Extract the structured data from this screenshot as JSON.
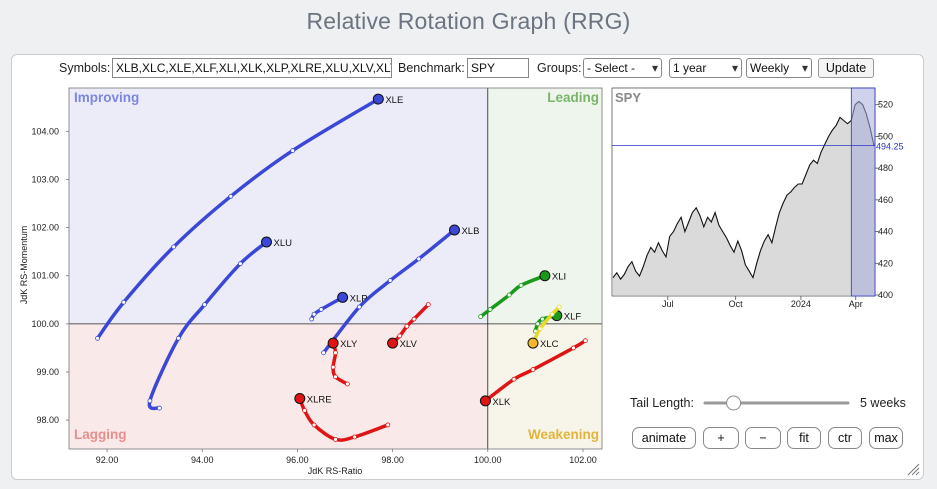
{
  "header": {
    "title": "Relative Rotation Graph (RRG)"
  },
  "controls": {
    "symbols_label": "Symbols:",
    "symbols_value": "XLB,XLC,XLE,XLF,XLI,XLK,XLP,XLRE,XLU,XLV,XLY",
    "benchmark_label": "Benchmark:",
    "benchmark_value": "SPY",
    "groups_label": "Groups:",
    "groups_value": "- Select -",
    "period_value": "1 year",
    "interval_value": "Weekly",
    "update_label": "Update"
  },
  "rrg": {
    "xlabel": "JdK RS-Ratio",
    "ylabel": "JdK RS-Momentum",
    "xlim": [
      91.2,
      102.4
    ],
    "ylim": [
      97.4,
      104.9
    ],
    "center": [
      100,
      100
    ],
    "xticks": [
      "92.00",
      "94.00",
      "96.00",
      "98.00",
      "100.00",
      "102.00"
    ],
    "xtick_values": [
      92,
      94,
      96,
      98,
      100,
      102
    ],
    "yticks": [
      "98.00",
      "99.00",
      "100.00",
      "101.00",
      "102.00",
      "103.00",
      "104.00"
    ],
    "ytick_values": [
      98,
      99,
      100,
      101,
      102,
      103,
      104
    ],
    "quadrants": {
      "improving": "Improving",
      "leading": "Leading",
      "lagging": "Lagging",
      "weakening": "Weakening"
    },
    "quadrant_colors": {
      "improving_bg": "#ececf9",
      "leading_bg": "#eef5ec",
      "lagging_bg": "#f9e9e9",
      "weakening_bg": "#f7f5e9",
      "improving_text": "#7b86e0",
      "leading_text": "#7ab46a",
      "lagging_text": "#ea8d8d",
      "weakening_text": "#e3b43a"
    }
  },
  "chart_data": {
    "type": "scatter",
    "title": "Relative Rotation Graph (RRG)",
    "xlabel": "JdK RS-Ratio",
    "ylabel": "JdK RS-Momentum",
    "series": [
      {
        "name": "XLE",
        "label": "XLE",
        "color": "#3b47d6",
        "points": [
          [
            91.8,
            99.7
          ],
          [
            92.35,
            100.45
          ],
          [
            93.4,
            101.6
          ],
          [
            94.6,
            102.65
          ],
          [
            95.9,
            103.6
          ],
          [
            97.7,
            104.67
          ]
        ]
      },
      {
        "name": "XLU",
        "label": "XLU",
        "color": "#3b47d6",
        "points": [
          [
            93.1,
            98.25
          ],
          [
            92.9,
            98.4
          ],
          [
            93.5,
            99.7
          ],
          [
            94.05,
            100.4
          ],
          [
            94.8,
            101.25
          ],
          [
            95.35,
            101.7
          ]
        ]
      },
      {
        "name": "XLB",
        "label": "XLB",
        "color": "#3b47d6",
        "points": [
          [
            96.55,
            99.4
          ],
          [
            97.3,
            100.35
          ],
          [
            97.95,
            100.9
          ],
          [
            98.55,
            101.35
          ],
          [
            99.3,
            101.95
          ]
        ]
      },
      {
        "name": "XLP",
        "label": "XLP",
        "color": "#3b47d6",
        "points": [
          [
            96.3,
            100.1
          ],
          [
            96.35,
            100.2
          ],
          [
            96.5,
            100.3
          ],
          [
            96.95,
            100.55
          ]
        ]
      },
      {
        "name": "XLY",
        "label": "XLY",
        "color": "#e01414",
        "points": [
          [
            97.05,
            98.75
          ],
          [
            96.8,
            98.9
          ],
          [
            96.75,
            99.1
          ],
          [
            96.8,
            99.4
          ],
          [
            96.75,
            99.6
          ]
        ]
      },
      {
        "name": "XLV",
        "label": "XLV",
        "color": "#e01414",
        "points": [
          [
            98.75,
            100.4
          ],
          [
            98.45,
            100.1
          ],
          [
            98.3,
            99.95
          ],
          [
            98.15,
            99.75
          ],
          [
            98.0,
            99.6
          ]
        ]
      },
      {
        "name": "XLRE",
        "label": "XLRE",
        "color": "#e01414",
        "points": [
          [
            97.9,
            97.9
          ],
          [
            97.2,
            97.65
          ],
          [
            96.8,
            97.6
          ],
          [
            96.35,
            97.9
          ],
          [
            96.15,
            98.2
          ],
          [
            96.05,
            98.45
          ]
        ]
      },
      {
        "name": "XLK",
        "label": "XLK",
        "color": "#e01414",
        "points": [
          [
            102.05,
            99.65
          ],
          [
            101.8,
            99.5
          ],
          [
            100.95,
            99.05
          ],
          [
            100.55,
            98.85
          ],
          [
            99.95,
            98.4
          ]
        ]
      },
      {
        "name": "XLI",
        "label": "XLI",
        "color": "#1a9a1a",
        "points": [
          [
            99.85,
            100.15
          ],
          [
            100.05,
            100.3
          ],
          [
            100.45,
            100.6
          ],
          [
            100.7,
            100.8
          ],
          [
            101.2,
            101.0
          ]
        ]
      },
      {
        "name": "XLF",
        "label": "XLF",
        "color": "#1a9a1a",
        "points": [
          [
            101.0,
            99.85
          ],
          [
            101.05,
            100.0
          ],
          [
            101.15,
            100.1
          ],
          [
            101.45,
            100.17
          ]
        ]
      },
      {
        "name": "XLC",
        "label": "XLC",
        "color": "#e8d82a",
        "marker": "#f5b82a",
        "points": [
          [
            101.5,
            100.35
          ],
          [
            101.35,
            100.2
          ],
          [
            101.1,
            99.9
          ],
          [
            100.95,
            99.6
          ]
        ]
      }
    ]
  },
  "spy": {
    "label": "SPY",
    "current_value": "494.25",
    "yticks": [
      "520",
      "500",
      "480",
      "460",
      "440",
      "420",
      "400"
    ],
    "ytick_values": [
      520,
      500,
      480,
      460,
      440,
      420,
      400
    ],
    "xticks": [
      "Jul",
      "Oct",
      "2024",
      "Apr"
    ],
    "ylim": [
      400,
      528
    ],
    "prices": [
      411,
      414,
      410,
      413,
      418,
      421,
      415,
      412,
      418,
      425,
      430,
      427,
      433,
      428,
      424,
      437,
      440,
      445,
      449,
      440,
      446,
      452,
      455,
      450,
      443,
      449,
      446,
      452,
      444,
      440,
      436,
      431,
      427,
      434,
      428,
      419,
      415,
      411,
      420,
      428,
      434,
      438,
      433,
      443,
      452,
      458,
      463,
      465,
      468,
      470,
      470,
      476,
      482,
      485,
      483,
      490,
      495,
      500,
      504,
      507,
      512,
      510,
      508,
      510,
      520,
      522,
      520,
      514,
      505,
      494
    ]
  },
  "tail": {
    "label": "Tail Length:",
    "value": "5 weeks",
    "fraction": 0.2
  },
  "buttons": {
    "animate": "animate",
    "plus": "+",
    "minus": "−",
    "fit": "fit",
    "ctr": "ctr",
    "max": "max"
  }
}
